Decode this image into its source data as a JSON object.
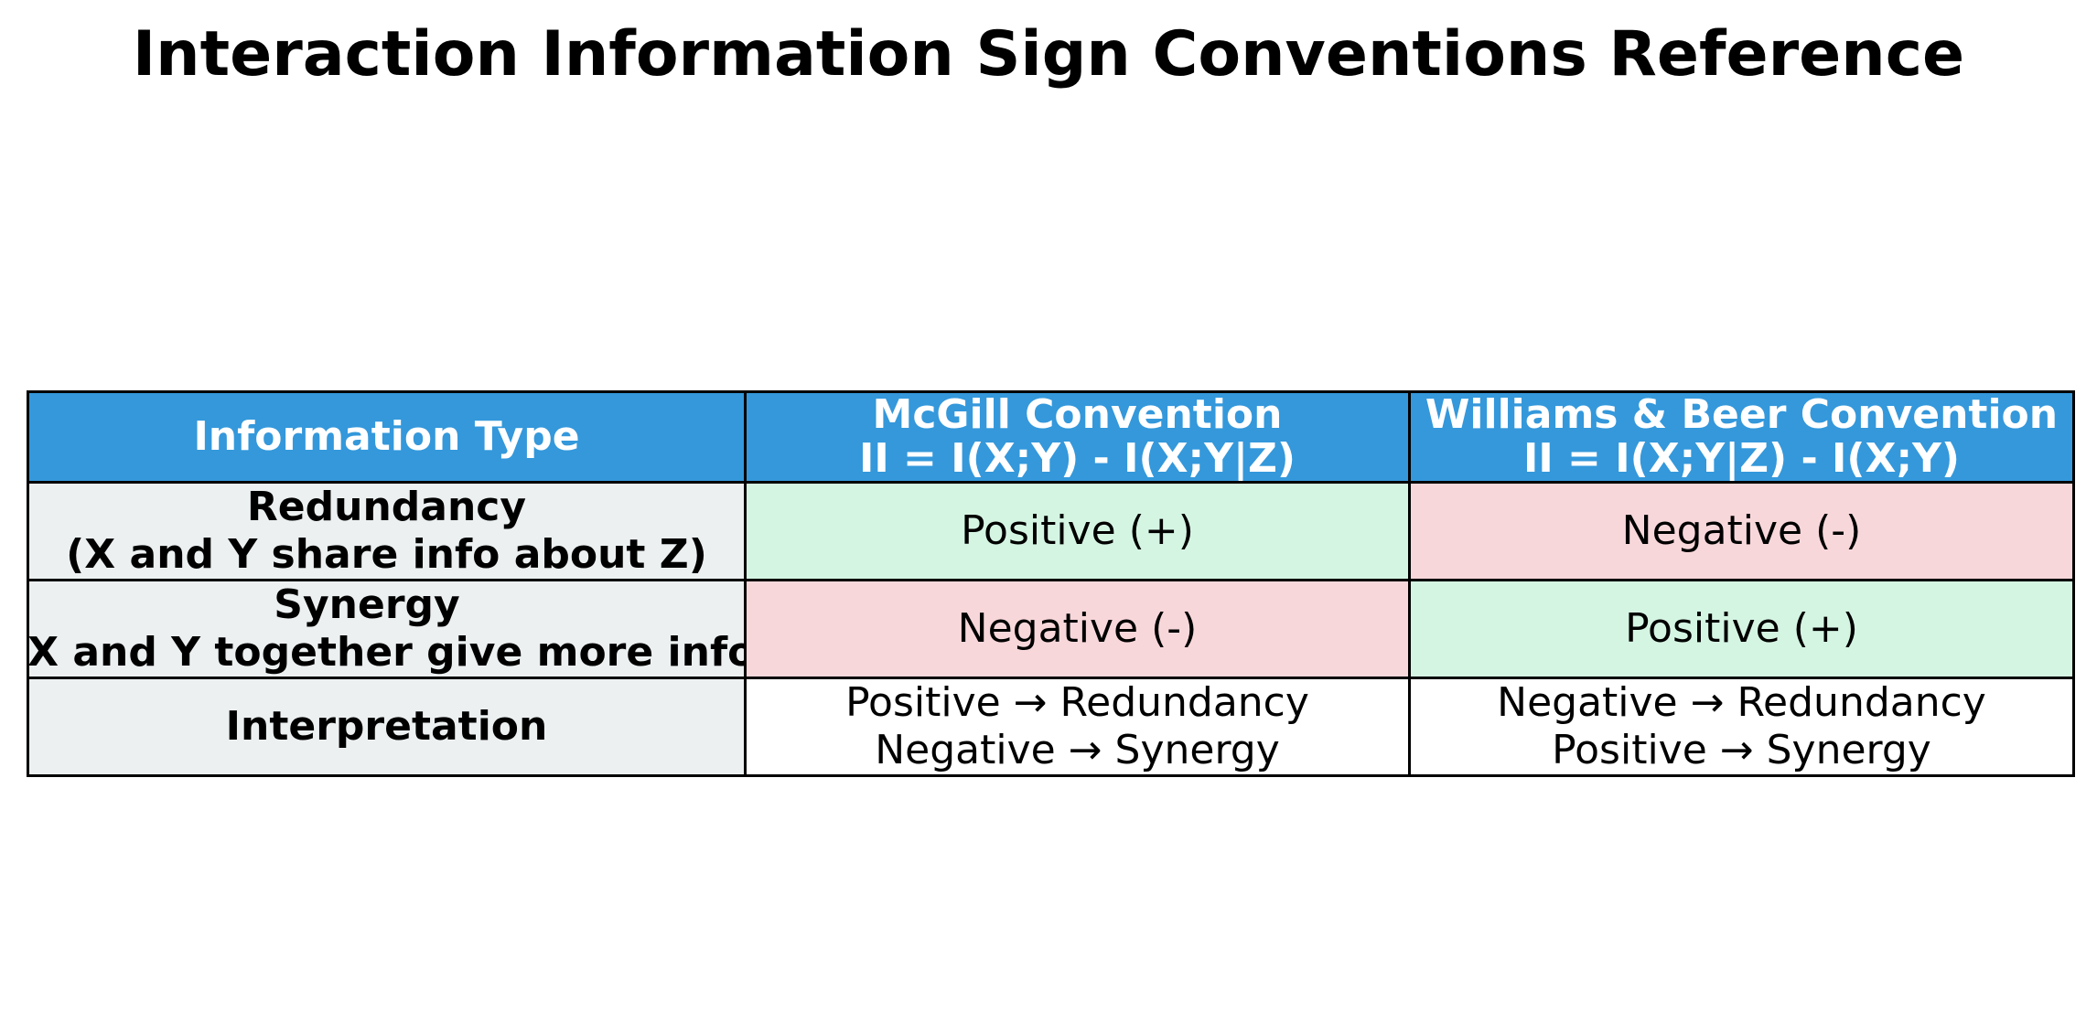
{
  "chart_data": {
    "type": "table",
    "title": "Interaction Information Sign Conventions Reference",
    "columns": [
      "Information Type",
      "McGill Convention\nII = I(X;Y) - I(X;Y|Z)",
      "Williams & Beer Convention\nII = I(X;Y|Z) - I(X;Y)"
    ],
    "rows": [
      [
        "Redundancy\n(X and Y share info about Z)",
        "Positive (+)",
        "Negative (-)"
      ],
      [
        "Synergy\n(X and Y together give more info",
        "Negative (-)",
        "Positive (+)"
      ],
      [
        "Interpretation",
        "Positive → Redundancy\nNegative → Synergy",
        "Negative → Redundancy\nPositive → Synergy"
      ]
    ],
    "cell_colors": [
      [
        "#ecf0f1",
        "#d5f5e3",
        "#f8d7da"
      ],
      [
        "#ecf0f1",
        "#f8d7da",
        "#d5f5e3"
      ],
      [
        "#ecf0f1",
        "#ffffff",
        "#ffffff"
      ]
    ],
    "header_color": "#3498db"
  }
}
